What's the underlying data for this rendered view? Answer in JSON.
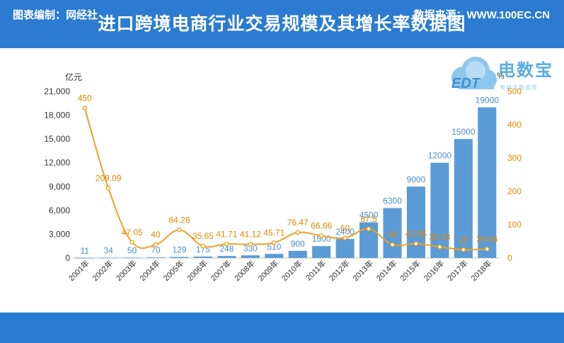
{
  "header": {
    "title": "进口跨境电商行业交易规模及其增长率数据图"
  },
  "footer": {
    "left": "图表编制：网经社",
    "right": "数据来源：WWW.100EC.CN"
  },
  "logo": {
    "text": "电数宝",
    "sub": "电商大数据库",
    "mark": "EDT",
    "icon": "cloud-logo-icon"
  },
  "colors": {
    "banner": "#2b7bd0",
    "bar": "#5b9bd5",
    "line": "#f0a020",
    "logo": "#58aee0"
  },
  "chart_data": {
    "type": "bar",
    "categories": [
      "2001年",
      "2002年",
      "2003年",
      "2004年",
      "2005年",
      "2006年",
      "2007年",
      "2008年",
      "2009年",
      "2010年",
      "2011年",
      "2012年",
      "2013年",
      "2014年",
      "2015年",
      "2016年",
      "2017年",
      "2018年"
    ],
    "series": [
      {
        "type": "bar",
        "axis": "left",
        "values": [
          11,
          34,
          50,
          70,
          129,
          175,
          248,
          330,
          510,
          900,
          1500,
          2400,
          4500,
          6300,
          9000,
          12000,
          15000,
          19000
        ]
      },
      {
        "type": "line",
        "axis": "right",
        "values": [
          450,
          209.09,
          47.05,
          40,
          84.28,
          35.65,
          41.71,
          41.12,
          45.71,
          76.47,
          66.66,
          60,
          87.5,
          40,
          42.85,
          33.33,
          25,
          26.66
        ]
      }
    ],
    "ylabel": "亿元",
    "y2label": "%",
    "ylim": [
      0,
      21000
    ],
    "y2lim": [
      0,
      500
    ],
    "yticks": [
      "0",
      "3,000",
      "6,000",
      "9,000",
      "12,000",
      "15,000",
      "18,000",
      "21,000"
    ],
    "y2ticks": [
      "0",
      "100",
      "200",
      "300",
      "400",
      "500"
    ],
    "grid": false,
    "legend": "none"
  }
}
